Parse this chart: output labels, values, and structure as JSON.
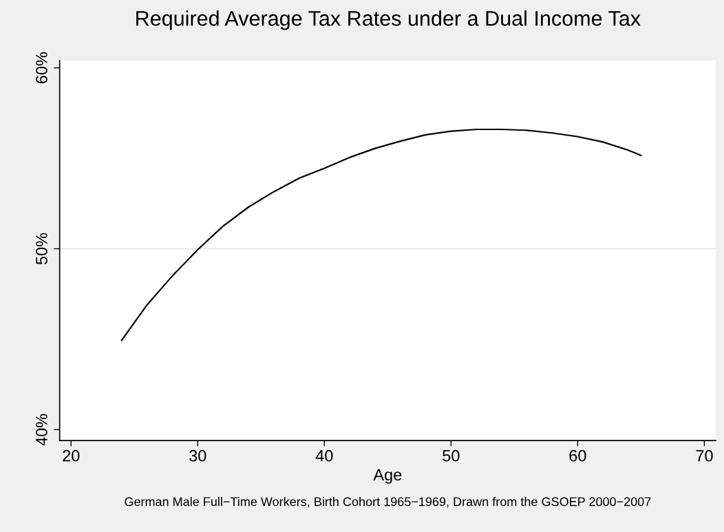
{
  "chart_data": {
    "type": "line",
    "title": "Required Average Tax Rates under a Dual Income Tax",
    "xlabel": "Age",
    "annotations": [
      "German Male Full−Time Workers, Birth Cohort 1965−1969, Drawn from the GSOEP 2000−2007"
    ],
    "x": [
      24,
      26,
      28,
      30,
      32,
      34,
      36,
      38,
      40,
      42,
      44,
      46,
      48,
      50,
      52,
      54,
      56,
      58,
      60,
      62,
      64,
      65
    ],
    "series": [
      {
        "color": "#000000",
        "values": [
          44.94,
          46.9,
          48.5,
          49.95,
          51.25,
          52.3,
          53.15,
          53.9,
          54.45,
          55.05,
          55.55,
          55.95,
          56.3,
          56.5,
          56.6,
          56.6,
          56.55,
          56.4,
          56.2,
          55.9,
          55.45,
          55.16
        ]
      }
    ],
    "xlim": [
      19.1,
      70.9
    ],
    "xticks": [
      20,
      30,
      40,
      50,
      60,
      70
    ],
    "ylim": [
      39.4,
      60.4
    ],
    "yticks": [
      {
        "value": 40,
        "label": "40%"
      },
      {
        "value": 50,
        "label": "50%"
      },
      {
        "value": 60,
        "label": "60%"
      }
    ],
    "grid": "y",
    "marker": "none",
    "line_style": "solid"
  }
}
